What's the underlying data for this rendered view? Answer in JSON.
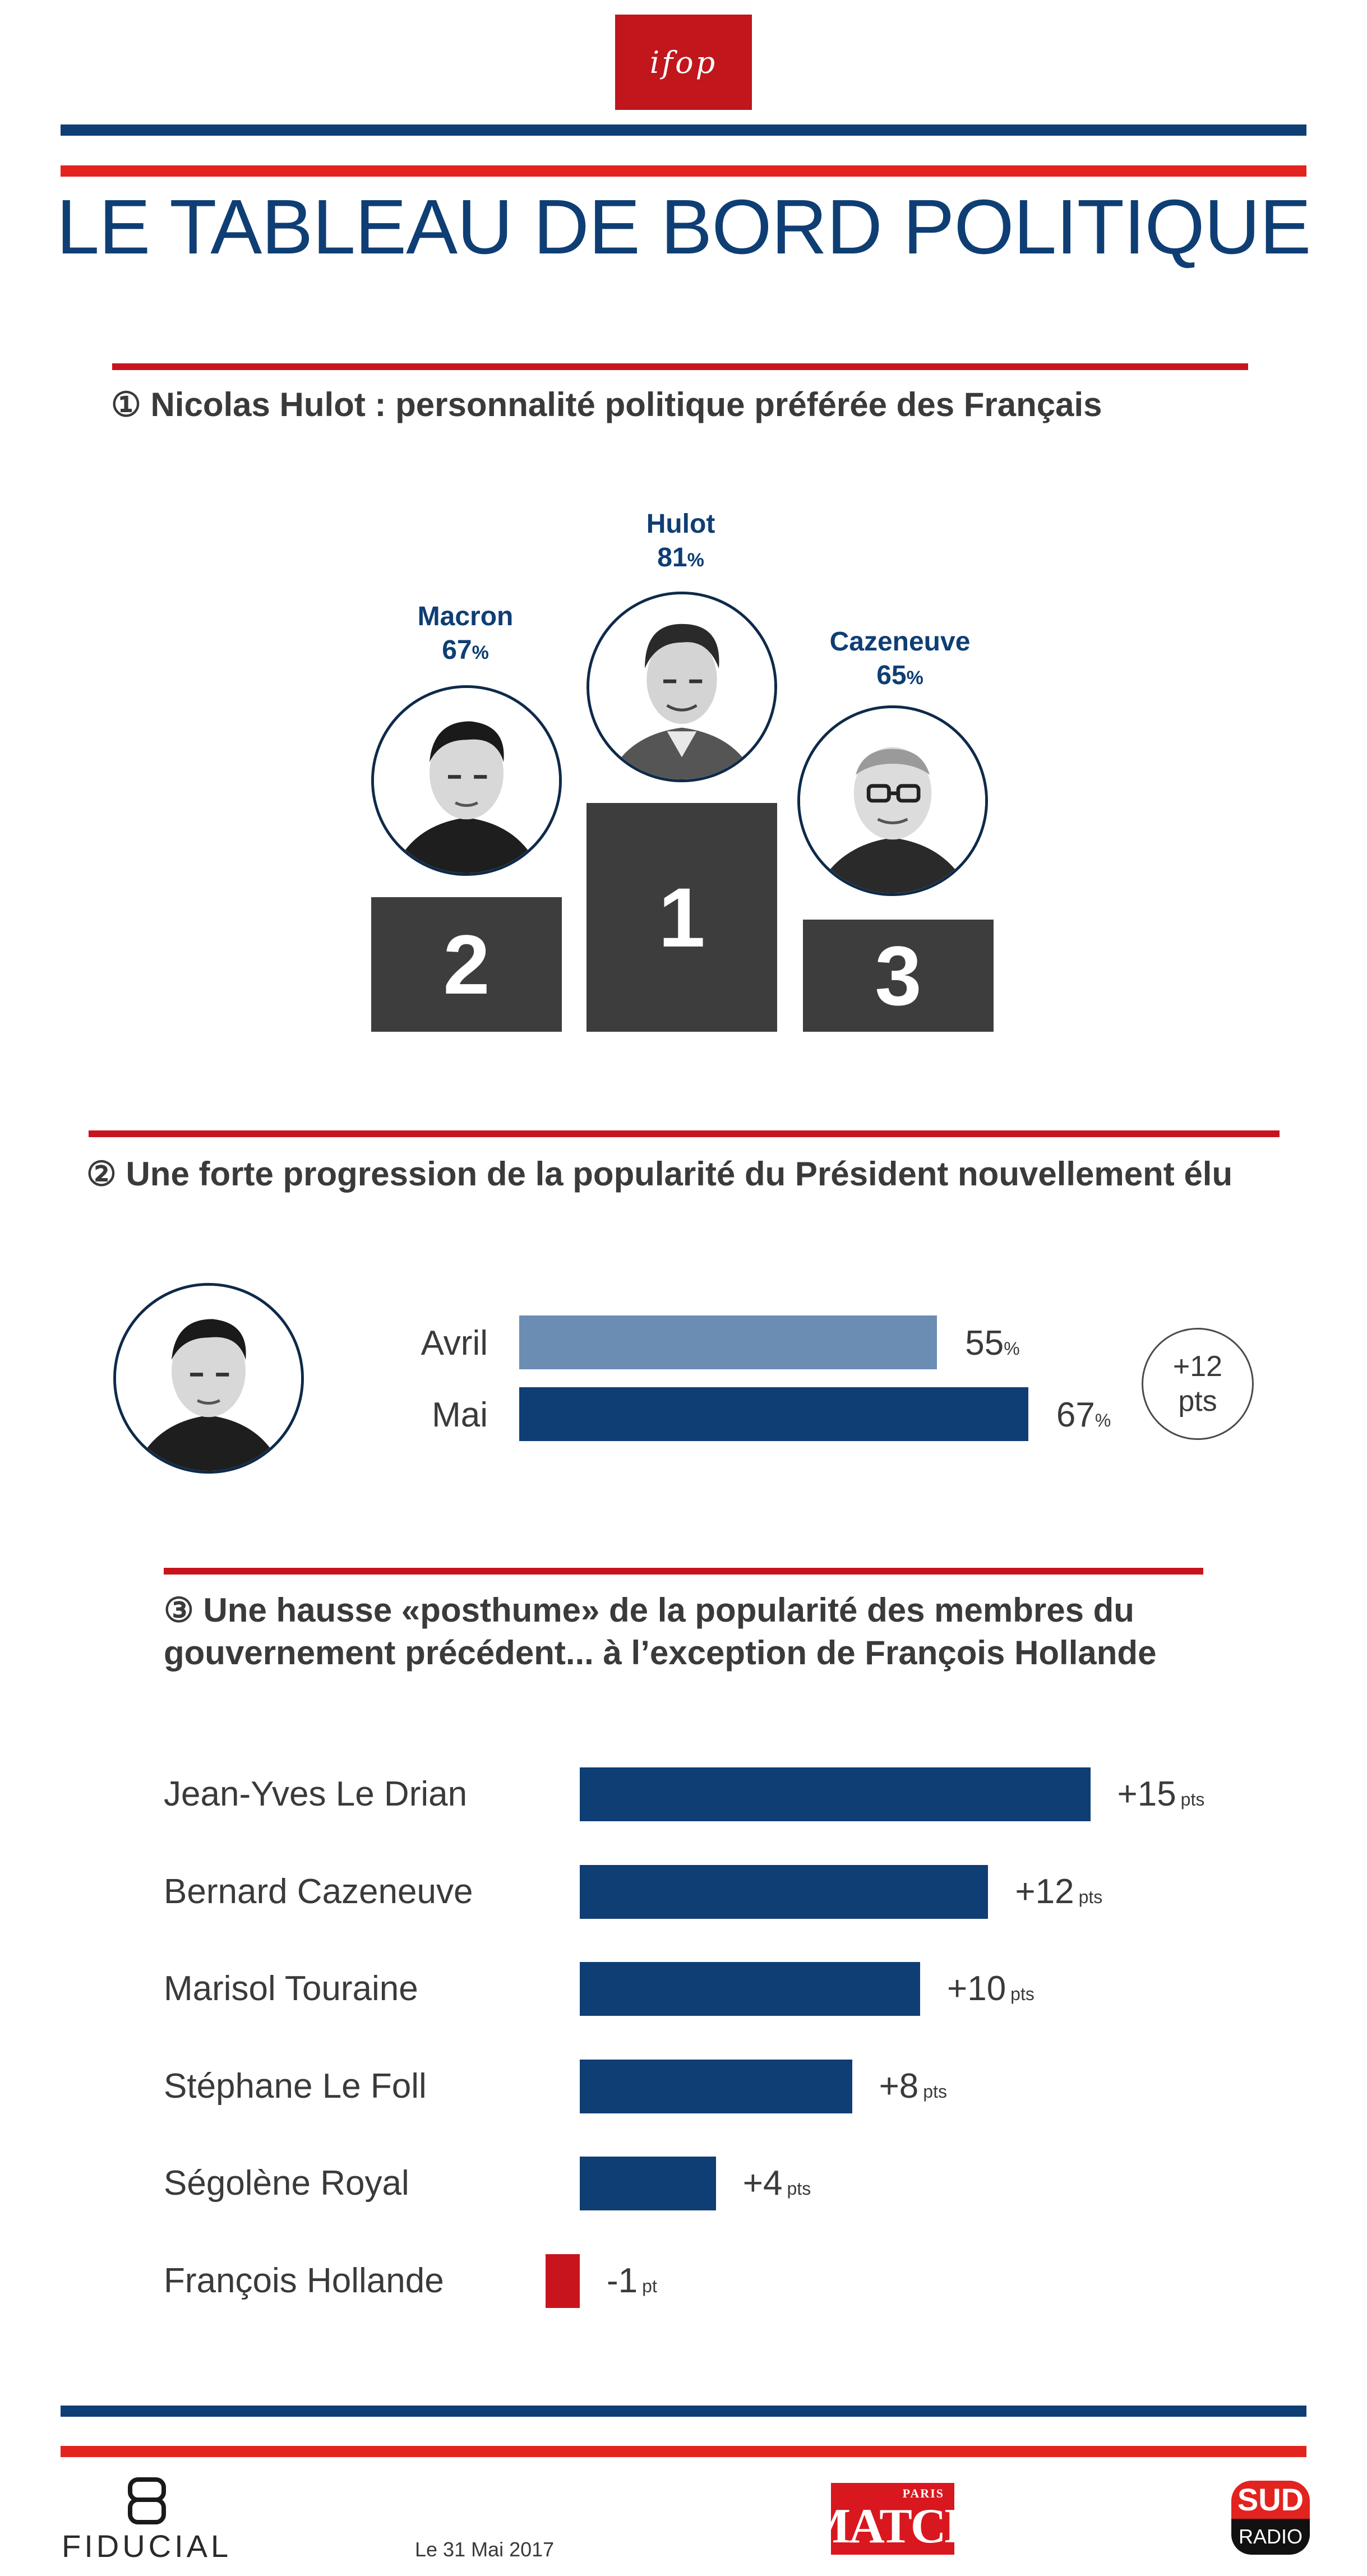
{
  "header": {
    "logo_text": "ifop",
    "title": "LE TABLEAU DE BORD POLITIQUE"
  },
  "colors": {
    "blue": "#0e3e74",
    "light_blue": "#6b8db3",
    "red": "#e2231f",
    "dark_red": "#c8151d",
    "podium": "#3d3d3d"
  },
  "section1": {
    "title": "① Nicolas Hulot : personnalité politique préférée des Français",
    "podium": [
      {
        "name": "Macron",
        "value": "67",
        "unit": "%",
        "rank": "2"
      },
      {
        "name": "Hulot",
        "value": "81",
        "unit": "%",
        "rank": "1"
      },
      {
        "name": "Cazeneuve",
        "value": "65",
        "unit": "%",
        "rank": "3"
      }
    ]
  },
  "section2": {
    "title": "② Une forte progression de la popularité du Président nouvellement élu",
    "badge_line1": "+12",
    "badge_line2": "pts"
  },
  "section3": {
    "title_line1": "③ Une hausse «posthume» de la popularité des membres du",
    "title_line2": "gouvernement précédent... à l’exception de François Hollande"
  },
  "chart_data": [
    {
      "type": "bar",
      "orientation": "horizontal",
      "categories": [
        "Avril",
        "Mai"
      ],
      "values": [
        55,
        67
      ],
      "value_labels": [
        "55",
        "67"
      ],
      "unit": "%",
      "colors": [
        "#6b8db3",
        "#0e3e74"
      ]
    },
    {
      "type": "bar",
      "orientation": "horizontal",
      "categories": [
        "Jean-Yves Le Drian",
        "Bernard Cazeneuve",
        "Marisol Touraine",
        "Stéphane Le Foll",
        "Ségolène Royal",
        "François Hollande"
      ],
      "values": [
        15,
        12,
        10,
        8,
        4,
        -1
      ],
      "value_labels": [
        "+15",
        "+12",
        "+10",
        "+8",
        "+4",
        "-1"
      ],
      "units": [
        "pts",
        "pts",
        "pts",
        "pts",
        "pts",
        "pt"
      ],
      "colors": {
        "positive": "#0e3e74",
        "negative": "#c8151d"
      }
    }
  ],
  "footer": {
    "fiducial": "FIDUCIAL",
    "date": "Le 31 Mai 2017",
    "match_small": "PARIS",
    "match_big": "MATCH",
    "sud_top": "SUD",
    "sud_bottom": "RADIO"
  }
}
